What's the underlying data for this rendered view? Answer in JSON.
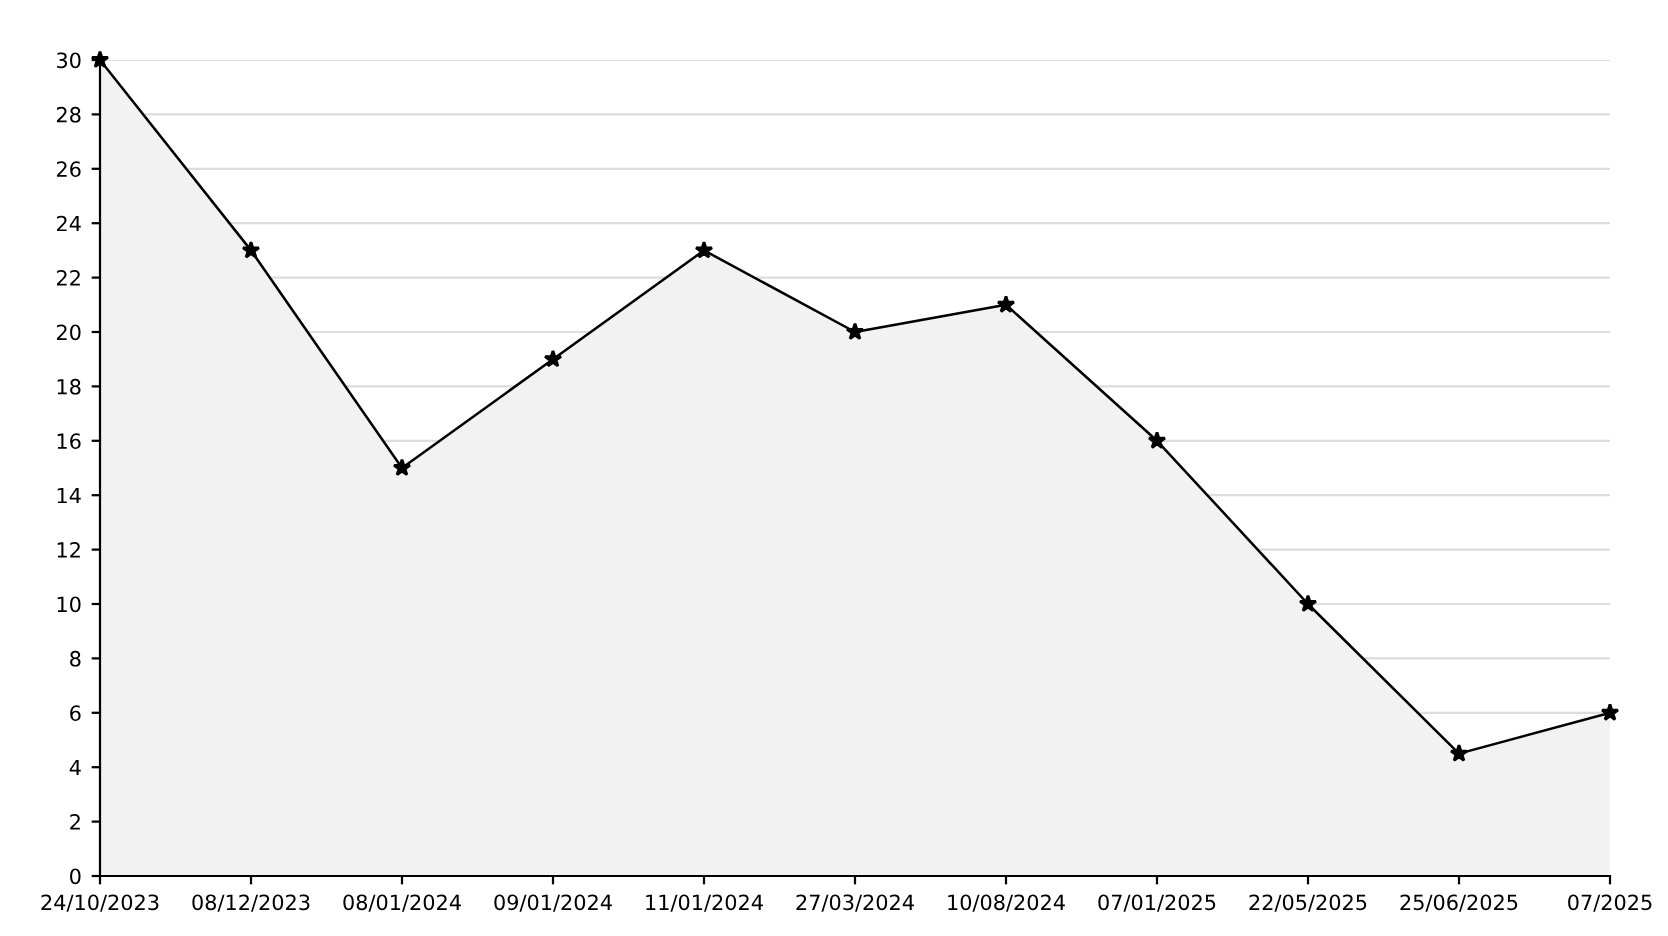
{
  "chart_data": {
    "type": "area",
    "categories": [
      "24/10/2023",
      "08/12/2023",
      "08/01/2024",
      "09/01/2024",
      "11/01/2024",
      "27/03/2024",
      "10/08/2024",
      "07/01/2025",
      "22/05/2025",
      "25/06/2025",
      "07/2025"
    ],
    "series": [
      {
        "color": "#000000",
        "values": [
          30,
          23,
          15,
          19,
          23,
          20,
          21,
          16,
          10,
          4.5,
          6
        ]
      }
    ],
    "ylim": [
      0,
      30
    ],
    "yticks": [
      0,
      2,
      4,
      6,
      8,
      10,
      12,
      14,
      16,
      18,
      20,
      22,
      24,
      26,
      28,
      30
    ],
    "grid": "y",
    "marker": "star",
    "line_style": "solid"
  }
}
